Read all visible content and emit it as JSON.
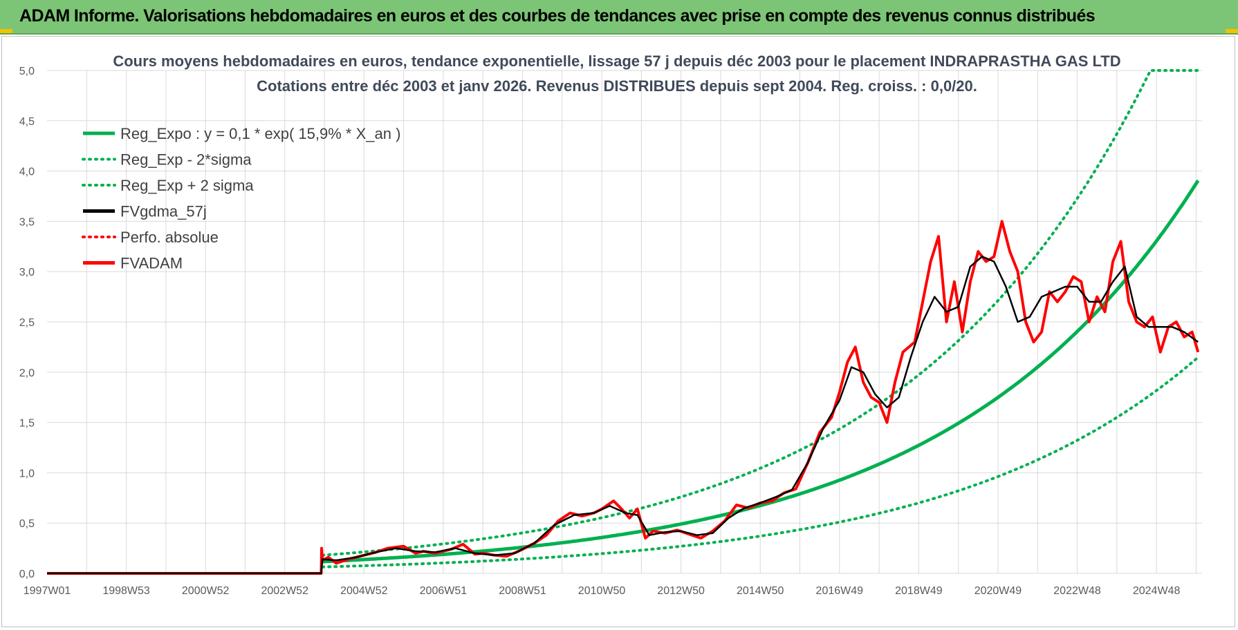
{
  "header": {
    "banner_title": "ADAM Informe. Valorisations hebdomadaires en euros et des courbes de tendances avec prise en compte des revenus connus distribués"
  },
  "colors": {
    "banner_bg": "#7cc576",
    "reg_expo": "#00b050",
    "fvgdma": "#000000",
    "fvadam": "#ff0000",
    "perfo": "#ff0000"
  },
  "chart_data": {
    "type": "line",
    "title_line1": "Cours moyens hebdomadaires en euros, tendance exponentielle, lissage 57 j depuis déc 2003 pour le placement INDRAPRASTHA GAS LTD",
    "title_line2": "Cotations entre déc 2003 et janv 2026.  Revenus DISTRIBUES depuis sept 2004.  Reg. croiss. : 0,0/20.",
    "xlabel": "",
    "ylabel": "",
    "xlim": [
      1997.0,
      2026.15
    ],
    "ylim": [
      0,
      5
    ],
    "y_ticks": [
      "0,0",
      "0,5",
      "1,0",
      "1,5",
      "2,0",
      "2,5",
      "3,0",
      "3,5",
      "4,0",
      "4,5",
      "5,0"
    ],
    "x_tick_labels": [
      "1997W01",
      "1998W53",
      "2000W52",
      "2002W52",
      "2004W52",
      "2006W51",
      "2008W51",
      "2010W50",
      "2012W50",
      "2014W50",
      "2016W49",
      "2018W49",
      "2020W49",
      "2022W48",
      "2024W48"
    ],
    "x_tick_years": [
      1997.0,
      1999.0,
      2001.0,
      2003.0,
      2005.0,
      2007.0,
      2009.0,
      2011.0,
      2013.0,
      2015.0,
      2017.0,
      2019.0,
      2021.0,
      2023.0,
      2025.0
    ],
    "legend": [
      {
        "key": "reg_expo",
        "label": "Reg_Expo : y = 0,1 * exp( 15,9% *  X_an )",
        "style": "solid",
        "color": "#00b050"
      },
      {
        "key": "reg_minus",
        "label": "Reg_Exp - 2*sigma",
        "style": "dotted",
        "color": "#00b050"
      },
      {
        "key": "reg_plus",
        "label": "Reg_Exp + 2 sigma",
        "style": "dotted",
        "color": "#00b050"
      },
      {
        "key": "fvgdma",
        "label": "FVgdma_57j",
        "style": "solid",
        "color": "#000000"
      },
      {
        "key": "perfo",
        "label": "Perfo. absolue",
        "style": "dotted",
        "color": "#ff0000"
      },
      {
        "key": "fvadam",
        "label": "FVADAM",
        "style": "solid",
        "color": "#ff0000"
      }
    ],
    "regression": {
      "a": 0.1,
      "growth": 0.159,
      "start_year": 2003.95,
      "end_year": 2026.05,
      "sigma_plus_factor": 1.55,
      "sigma_minus_factor": 0.55,
      "cap": 5.0
    },
    "series": [
      {
        "name": "FVADAM",
        "x": [
          1997.0,
          2003.92,
          2003.93,
          2003.95,
          2004.1,
          2004.3,
          2004.6,
          2005.0,
          2005.3,
          2005.6,
          2006.0,
          2006.3,
          2006.5,
          2006.8,
          2007.2,
          2007.5,
          2007.8,
          2008.0,
          2008.3,
          2008.6,
          2008.9,
          2009.3,
          2009.6,
          2009.9,
          2010.2,
          2010.5,
          2010.8,
          2011.0,
          2011.3,
          2011.5,
          2011.7,
          2011.9,
          2012.1,
          2012.3,
          2012.6,
          2012.9,
          2013.2,
          2013.5,
          2013.8,
          2014.1,
          2014.4,
          2014.7,
          2015.0,
          2015.3,
          2015.6,
          2015.9,
          2016.2,
          2016.5,
          2016.8,
          2017.0,
          2017.2,
          2017.4,
          2017.6,
          2017.8,
          2018.0,
          2018.2,
          2018.4,
          2018.6,
          2018.9,
          2019.1,
          2019.3,
          2019.5,
          2019.7,
          2019.9,
          2020.1,
          2020.3,
          2020.5,
          2020.7,
          2020.9,
          2021.1,
          2021.3,
          2021.5,
          2021.7,
          2021.9,
          2022.1,
          2022.3,
          2022.5,
          2022.7,
          2022.9,
          2023.1,
          2023.3,
          2023.5,
          2023.7,
          2023.9,
          2024.1,
          2024.3,
          2024.5,
          2024.7,
          2024.9,
          2025.1,
          2025.3,
          2025.5,
          2025.7,
          2025.9,
          2026.05
        ],
        "values": [
          0.0,
          0.0,
          0.25,
          0.13,
          0.16,
          0.1,
          0.14,
          0.18,
          0.21,
          0.25,
          0.27,
          0.2,
          0.22,
          0.2,
          0.24,
          0.29,
          0.19,
          0.2,
          0.18,
          0.17,
          0.22,
          0.3,
          0.38,
          0.52,
          0.6,
          0.57,
          0.6,
          0.64,
          0.72,
          0.64,
          0.55,
          0.64,
          0.35,
          0.42,
          0.4,
          0.43,
          0.39,
          0.35,
          0.42,
          0.52,
          0.68,
          0.65,
          0.7,
          0.72,
          0.8,
          0.84,
          1.1,
          1.4,
          1.55,
          1.8,
          2.1,
          2.25,
          1.9,
          1.75,
          1.7,
          1.5,
          1.9,
          2.2,
          2.3,
          2.7,
          3.1,
          3.35,
          2.5,
          2.9,
          2.4,
          2.9,
          3.2,
          3.1,
          3.15,
          3.5,
          3.2,
          3.0,
          2.5,
          2.3,
          2.4,
          2.8,
          2.7,
          2.8,
          2.95,
          2.9,
          2.5,
          2.75,
          2.6,
          3.1,
          3.3,
          2.7,
          2.5,
          2.45,
          2.55,
          2.2,
          2.45,
          2.5,
          2.35,
          2.4,
          2.2
        ]
      },
      {
        "name": "FVgdma_57j",
        "x": [
          1997.0,
          2003.92,
          2003.95,
          2004.3,
          2004.8,
          2005.3,
          2005.8,
          2006.3,
          2006.8,
          2007.3,
          2007.8,
          2008.3,
          2008.8,
          2009.3,
          2009.8,
          2010.3,
          2010.8,
          2011.2,
          2011.6,
          2011.9,
          2012.2,
          2012.6,
          2013.0,
          2013.4,
          2013.8,
          2014.2,
          2014.6,
          2015.0,
          2015.4,
          2015.8,
          2016.2,
          2016.6,
          2017.0,
          2017.3,
          2017.6,
          2017.9,
          2018.2,
          2018.5,
          2018.8,
          2019.1,
          2019.4,
          2019.7,
          2020.0,
          2020.3,
          2020.6,
          2020.9,
          2021.2,
          2021.5,
          2021.8,
          2022.1,
          2022.4,
          2022.7,
          2023.0,
          2023.3,
          2023.6,
          2023.9,
          2024.2,
          2024.5,
          2024.8,
          2025.1,
          2025.4,
          2025.7,
          2026.05
        ],
        "values": [
          0.0,
          0.0,
          0.14,
          0.13,
          0.16,
          0.21,
          0.25,
          0.22,
          0.21,
          0.25,
          0.2,
          0.18,
          0.2,
          0.3,
          0.48,
          0.58,
          0.6,
          0.67,
          0.6,
          0.58,
          0.38,
          0.41,
          0.42,
          0.38,
          0.4,
          0.55,
          0.65,
          0.7,
          0.76,
          0.83,
          1.1,
          1.45,
          1.72,
          2.05,
          2.0,
          1.78,
          1.65,
          1.75,
          2.15,
          2.5,
          2.75,
          2.6,
          2.65,
          3.05,
          3.15,
          3.1,
          2.85,
          2.5,
          2.55,
          2.75,
          2.8,
          2.85,
          2.85,
          2.7,
          2.7,
          2.9,
          3.05,
          2.55,
          2.45,
          2.45,
          2.45,
          2.4,
          2.3
        ]
      }
    ]
  }
}
